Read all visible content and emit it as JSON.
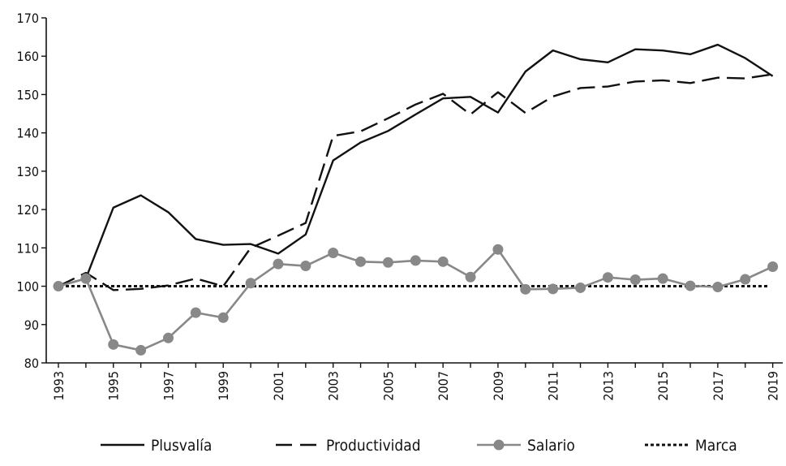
{
  "chart_data": {
    "type": "line",
    "title": "",
    "xlabel": "",
    "ylabel": "",
    "ylim": [
      80,
      170
    ],
    "yticks": [
      80,
      90,
      100,
      110,
      120,
      130,
      140,
      150,
      160,
      170
    ],
    "x": [
      1993,
      1994,
      1995,
      1996,
      1997,
      1998,
      1999,
      2000,
      2001,
      2002,
      2003,
      2004,
      2005,
      2006,
      2007,
      2008,
      2009,
      2010,
      2011,
      2012,
      2013,
      2014,
      2015,
      2016,
      2017,
      2018,
      2019
    ],
    "xticks": [
      "1993",
      "1995",
      "1997",
      "1999",
      "2001",
      "2003",
      "2005",
      "2007",
      "2009",
      "2011",
      "2013",
      "2015",
      "2017",
      "2019"
    ],
    "grid": false,
    "legend_position": "bottom",
    "series": [
      {
        "name": "Plusvalía",
        "style": "solid",
        "color": "#111111",
        "values": [
          100,
          102,
          120.5,
          123.7,
          119.3,
          112.3,
          110.8,
          111,
          108.5,
          113.5,
          132.8,
          137.5,
          140.5,
          144.8,
          149,
          149.4,
          145.3,
          156,
          161.5,
          159.2,
          158.4,
          161.8,
          161.5,
          160.5,
          163,
          159.5,
          154.8
        ]
      },
      {
        "name": "Productividad",
        "style": "dashed",
        "color": "#111111",
        "values": [
          100,
          103.5,
          99,
          99.3,
          100.2,
          102,
          100,
          110,
          113.2,
          116.5,
          139.2,
          140.4,
          143.8,
          147.4,
          150.2,
          144.8,
          150.6,
          145.2,
          149.5,
          151.7,
          152.1,
          153.4,
          153.7,
          153,
          154.4,
          154.2,
          155.3
        ]
      },
      {
        "name": "Salario",
        "style": "solid-markers",
        "color": "#888888",
        "values": [
          100,
          102,
          84.8,
          83.3,
          86.5,
          93.1,
          91.8,
          100.8,
          105.8,
          105.3,
          108.7,
          106.4,
          106.2,
          106.7,
          106.4,
          102.4,
          109.6,
          99.2,
          99.3,
          99.6,
          102.3,
          101.7,
          102,
          100.1,
          99.8,
          101.8,
          105.1
        ]
      },
      {
        "name": "Marca",
        "style": "dotted",
        "color": "#111111",
        "values": [
          100,
          100,
          100,
          100,
          100,
          100,
          100,
          100,
          100,
          100,
          100,
          100,
          100,
          100,
          100,
          100,
          100,
          100,
          100,
          100,
          100,
          100,
          100,
          100,
          100,
          100,
          100
        ]
      }
    ]
  }
}
